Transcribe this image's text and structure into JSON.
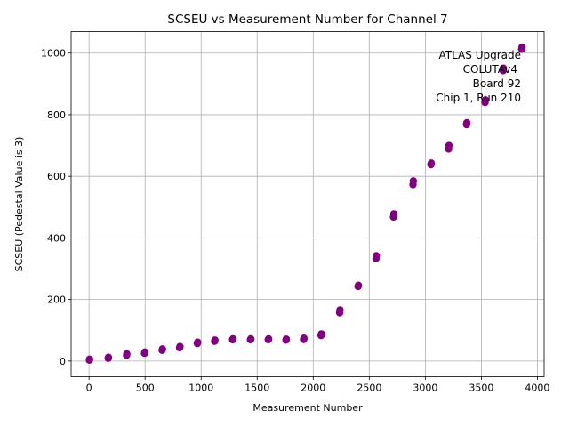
{
  "chart_data": {
    "type": "scatter",
    "title": "SCSEU vs Measurement Number for Channel 7",
    "xlabel": "Measurement Number",
    "ylabel": "SCSEU (Pedestal Value is 3)",
    "xlim": [
      -160,
      4060
    ],
    "ylim": [
      -51,
      1070
    ],
    "xticks": [
      0,
      500,
      1000,
      1500,
      2000,
      2500,
      3000,
      3500,
      4000
    ],
    "yticks": [
      0,
      200,
      400,
      600,
      800,
      1000
    ],
    "grid": true,
    "marker_color": "#800080",
    "annotation": [
      "ATLAS Upgrade",
      "COLUTAv4",
      "Board 92",
      "Chip 1, Run 210"
    ],
    "annotation_placement": "top-right",
    "series": [
      {
        "name": "Channel 7",
        "x": [
          3,
          5,
          171,
          173,
          335,
          337,
          495,
          498,
          652,
          655,
          808,
          811,
          966,
          969,
          1120,
          1123,
          1281,
          1284,
          1440,
          1443,
          1599,
          1602,
          1757,
          1760,
          1914,
          1917,
          2070,
          2073,
          2236,
          2239,
          2400,
          2403,
          2560,
          2563,
          2716,
          2719,
          2890,
          2893,
          3050,
          3053,
          3208,
          3211,
          3368,
          3371,
          3533,
          3536,
          3694,
          3697,
          3860,
          3863
        ],
        "y": [
          3,
          6,
          9,
          12,
          19,
          23,
          25,
          29,
          35,
          39,
          43,
          47,
          57,
          61,
          64,
          68,
          69,
          72,
          69,
          72,
          69,
          72,
          68,
          71,
          70,
          74,
          83,
          88,
          157,
          166,
          242,
          246,
          333,
          342,
          468,
          478,
          573,
          585,
          638,
          643,
          689,
          700,
          768,
          774,
          840,
          848,
          943,
          951,
          1013,
          1019
        ]
      }
    ]
  }
}
